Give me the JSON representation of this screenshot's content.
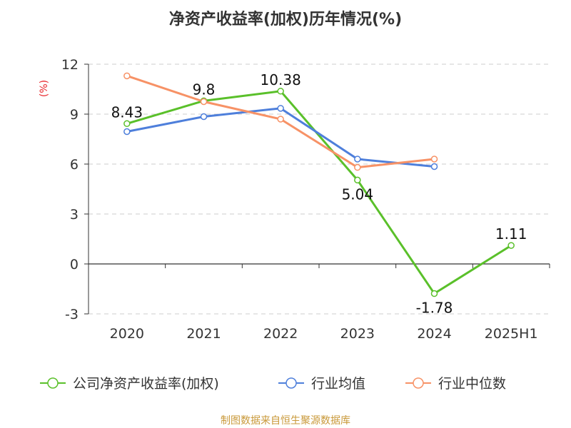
{
  "chart_data": {
    "type": "line",
    "title": "净资产收益率(加权)历年情况(%)",
    "ylabel": "(%)",
    "categories": [
      "2020",
      "2021",
      "2022",
      "2023",
      "2024",
      "2025H1"
    ],
    "yticks": [
      "12",
      "9",
      "6",
      "3",
      "0",
      "-3"
    ],
    "ylim": [
      -3,
      12
    ],
    "grid": true,
    "legend_position": "bottom",
    "series": [
      {
        "name": "公司净资产收益率(加权)",
        "color": "#5ac02a",
        "values": [
          8.43,
          9.8,
          10.38,
          5.04,
          -1.78,
          1.11
        ],
        "labels": [
          "8.43",
          "9.8",
          "10.38",
          "5.04",
          "-1.78",
          "1.11"
        ]
      },
      {
        "name": "行业均值",
        "color": "#4e7fdb",
        "values": [
          7.95,
          8.85,
          9.35,
          6.3,
          5.85,
          null
        ]
      },
      {
        "name": "行业中位数",
        "color": "#f79266",
        "values": [
          11.3,
          9.75,
          8.7,
          5.8,
          6.3,
          null
        ]
      }
    ],
    "source": "制图数据来自恒生聚源数据库"
  }
}
